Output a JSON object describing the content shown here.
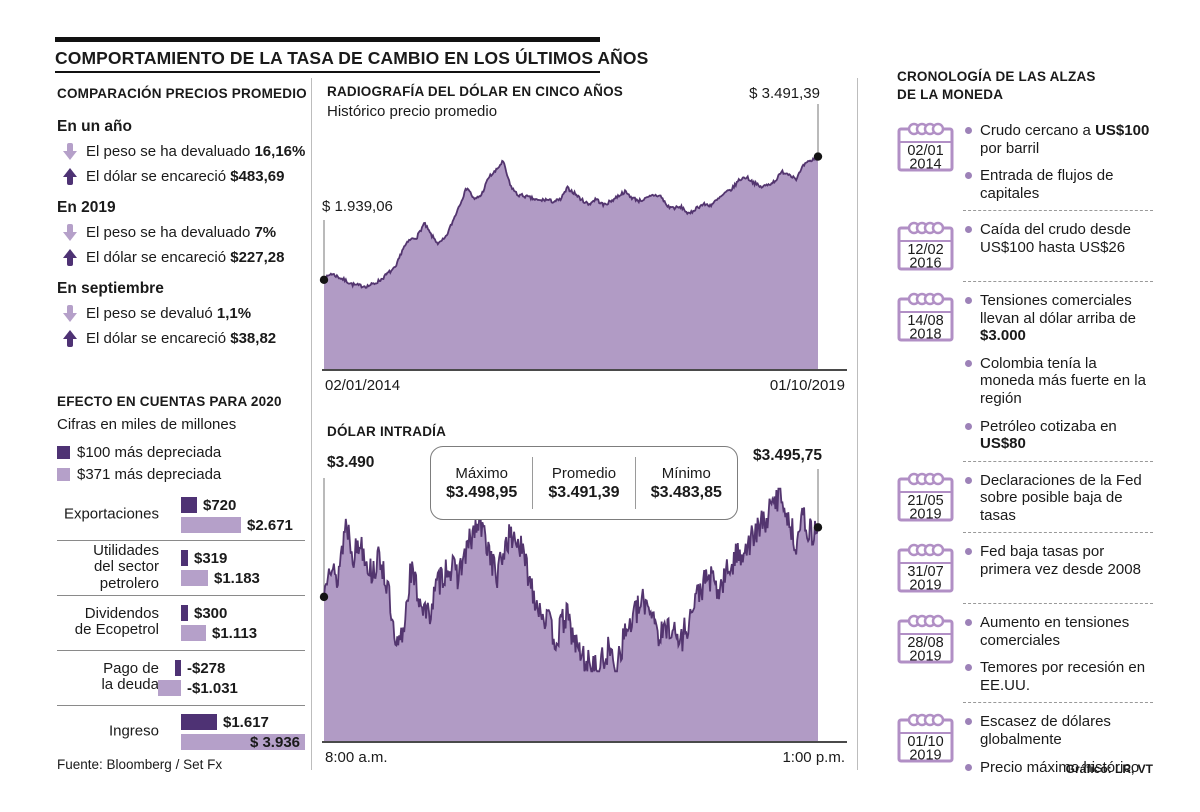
{
  "title": "COMPORTAMIENTO DE LA TASA DE CAMBIO EN LOS ÚLTIMOS AÑOS",
  "colors": {
    "dark_purple": "#4e3274",
    "light_purple": "#b5a0c9",
    "area_fill": "#b19bc5",
    "line_stroke": "#53356f",
    "calendar_purple": "#b18fc5",
    "bullet_purple": "#9d82b8",
    "dot_black": "#141414",
    "axis_gray": "#4a4a4a",
    "callout_gray": "#8c8c8c"
  },
  "left": {
    "heading": "COMPARACIÓN PRECIOS PROMEDIO",
    "sections": [
      {
        "label": "En un año",
        "rows": [
          {
            "dir": "down",
            "text": "El peso se ha devaluado ",
            "bold": "16,16%"
          },
          {
            "dir": "up",
            "text": "El dólar se encareció ",
            "bold": "$483,69"
          }
        ]
      },
      {
        "label": "En 2019",
        "rows": [
          {
            "dir": "down",
            "text": "El peso se ha devaluado ",
            "bold": "7%"
          },
          {
            "dir": "up",
            "text": "El dólar se encareció ",
            "bold": "$227,28"
          }
        ]
      },
      {
        "label": "En septiembre",
        "rows": [
          {
            "dir": "down",
            "text": "El peso se devaluó ",
            "bold": "1,1%"
          },
          {
            "dir": "up",
            "text": "El dólar se encareció ",
            "bold": "$38,82"
          }
        ]
      }
    ],
    "effect_heading": "EFECTO EN CUENTAS PARA 2020",
    "effect_subheading": "Cifras en miles de millones",
    "legend": [
      {
        "swatch": "dark",
        "label": "$100 más depreciada"
      },
      {
        "swatch": "light",
        "label": "$371 más depreciada"
      }
    ],
    "source": "Fuente: Bloomberg / Set Fx"
  },
  "timeline": {
    "heading_line1": "CRONOLOGÍA DE LAS ALZAS",
    "heading_line2": "DE LA MONEDA",
    "entries": [
      {
        "date": [
          "02/01",
          "2014"
        ],
        "bullets": [
          [
            {
              "t": "Crudo cercano a "
            },
            {
              "t": "US$100",
              "b": true
            },
            {
              "t": " por barril"
            }
          ],
          [
            {
              "t": "Entrada de flujos de capitales"
            }
          ]
        ]
      },
      {
        "date": [
          "12/02",
          "2016"
        ],
        "bullets": [
          [
            {
              "t": "Caída del crudo desde US$100 hasta US$26"
            }
          ]
        ]
      },
      {
        "date": [
          "14/08",
          "2018"
        ],
        "bullets": [
          [
            {
              "t": "Tensiones comerciales llevan al dólar arriba de "
            },
            {
              "t": "$3.000",
              "b": true
            }
          ],
          [
            {
              "t": "Colombia tenía la moneda más fuerte en la región"
            }
          ],
          [
            {
              "t": "Petróleo cotizaba en "
            },
            {
              "t": "US$80",
              "b": true
            }
          ]
        ]
      },
      {
        "date": [
          "21/05",
          "2019"
        ],
        "bullets": [
          [
            {
              "t": "Declaraciones de la Fed sobre posible baja de tasas"
            }
          ]
        ]
      },
      {
        "date": [
          "31/07",
          "2019"
        ],
        "bullets": [
          [
            {
              "t": "Fed baja tasas por primera vez desde 2008"
            }
          ]
        ]
      },
      {
        "date": [
          "28/08",
          "2019"
        ],
        "bullets": [
          [
            {
              "t": "Aumento en tensiones comerciales"
            }
          ],
          [
            {
              "t": "Temores por recesión en EE.UU."
            }
          ]
        ]
      },
      {
        "date": [
          "01/10",
          "2019"
        ],
        "bullets": [
          [
            {
              "t": "Escasez de dólares globalmente"
            }
          ],
          [
            {
              "t": "Precio máximo histórico"
            }
          ]
        ]
      }
    ]
  },
  "credit": "Gráfico: LR, VT",
  "chart_data": [
    {
      "id": "efecto-2020",
      "type": "bar",
      "orientation": "horizontal",
      "title": "EFECTO EN CUENTAS PARA 2020",
      "unit": "miles de millones de pesos",
      "categories": [
        "Exportaciones",
        "Utilidades del sector petrolero",
        "Dividendos de Ecopetrol",
        "Pago de la deuda",
        "Ingreso"
      ],
      "category_lines": [
        [
          "Exportaciones"
        ],
        [
          "Utilidades",
          "del sector",
          "petrolero"
        ],
        [
          "Dividendos",
          "de Ecopetrol"
        ],
        [
          "Pago de",
          "la deuda"
        ],
        [
          "Ingreso"
        ]
      ],
      "series": [
        {
          "name": "$100 más depreciada",
          "values": [
            720,
            319,
            300,
            -278,
            1617
          ],
          "labels": [
            "$720",
            "$319",
            "$300",
            "-$278",
            "$1.617"
          ]
        },
        {
          "name": "$371 más depreciada",
          "values": [
            2671,
            1183,
            1113,
            -1031,
            3936
          ],
          "labels": [
            "$2.671",
            "$1.183",
            "$1.113",
            "-$1.031",
            "$ 3.936"
          ]
        }
      ]
    },
    {
      "id": "radiografia-5y",
      "type": "area",
      "title": "RADIOGRAFÍA DEL DÓLAR EN CINCO AÑOS",
      "subtitle": "Histórico precio promedio",
      "x_start_label": "02/01/2014",
      "x_end_label": "01/10/2019",
      "start_label": "$ 1.939,06",
      "end_label": "$ 3.491,39",
      "start_value": 1939.06,
      "end_value": 3491.39,
      "x_unit": "monthly 01/2014 - 10/2019",
      "values": [
        1939.06,
        2020,
        1975,
        1930,
        1880,
        1865,
        1858,
        1890,
        1945,
        2028,
        2090,
        2330,
        2441,
        2480,
        2650,
        2500,
        2390,
        2470,
        2680,
        2900,
        3110,
        2945,
        3010,
        3230,
        3310,
        3434,
        3130,
        3010,
        2995,
        2965,
        2935,
        2950,
        2925,
        2945,
        3095,
        3030,
        2945,
        2890,
        2960,
        2880,
        2925,
        2990,
        3050,
        2975,
        2935,
        2960,
        3006,
        2995,
        2862,
        2845,
        2852,
        2760,
        2845,
        2890,
        2878,
        2950,
        3028,
        3085,
        3200,
        3235,
        3165,
        3105,
        3135,
        3185,
        3300,
        3270,
        3212,
        3380,
        3438,
        3491.39
      ],
      "y_render_domain": [
        816,
        3700
      ]
    },
    {
      "id": "dolar-intradia",
      "type": "area",
      "title": "DÓLAR INTRADÍA",
      "x_start_label": "8:00 a.m.",
      "x_end_label": "1:00 p.m.",
      "start_label": "$3.490",
      "end_label": "$3.495,75",
      "start_value": 3490,
      "end_value": 3495.75,
      "stats": {
        "max_label": "Máximo",
        "max_value": "$3.498,95",
        "avg_label": "Promedio",
        "avg_value": "$3.491,39",
        "min_label": "Mínimo",
        "min_value": "$3.483,85"
      },
      "max": 3498.95,
      "avg": 3491.39,
      "min": 3483.85,
      "anchors": [
        [
          0,
          3490
        ],
        [
          0.01,
          3493.5
        ],
        [
          0.025,
          3491
        ],
        [
          0.045,
          3496.3
        ],
        [
          0.06,
          3493.5
        ],
        [
          0.075,
          3494.6
        ],
        [
          0.095,
          3492
        ],
        [
          0.115,
          3493.2
        ],
        [
          0.13,
          3490.5
        ],
        [
          0.145,
          3485.3
        ],
        [
          0.16,
          3487
        ],
        [
          0.175,
          3492.3
        ],
        [
          0.19,
          3490.3
        ],
        [
          0.21,
          3488.3
        ],
        [
          0.23,
          3491
        ],
        [
          0.25,
          3492.6
        ],
        [
          0.27,
          3491.8
        ],
        [
          0.3,
          3495
        ],
        [
          0.315,
          3496.2
        ],
        [
          0.335,
          3493.8
        ],
        [
          0.35,
          3491.5
        ],
        [
          0.37,
          3494.8
        ],
        [
          0.39,
          3494.9
        ],
        [
          0.41,
          3492.5
        ],
        [
          0.43,
          3489.6
        ],
        [
          0.45,
          3488.2
        ],
        [
          0.47,
          3486.4
        ],
        [
          0.49,
          3488.6
        ],
        [
          0.51,
          3486
        ],
        [
          0.53,
          3484.6
        ],
        [
          0.555,
          3483.9
        ],
        [
          0.575,
          3485.6
        ],
        [
          0.59,
          3484.4
        ],
        [
          0.61,
          3487
        ],
        [
          0.63,
          3488.6
        ],
        [
          0.65,
          3489.7
        ],
        [
          0.665,
          3488.9
        ],
        [
          0.68,
          3486.6
        ],
        [
          0.7,
          3487.8
        ],
        [
          0.72,
          3486.2
        ],
        [
          0.74,
          3488.2
        ],
        [
          0.76,
          3490.6
        ],
        [
          0.78,
          3491.6
        ],
        [
          0.8,
          3490.4
        ],
        [
          0.82,
          3492.4
        ],
        [
          0.84,
          3493.6
        ],
        [
          0.86,
          3494.4
        ],
        [
          0.88,
          3495.6
        ],
        [
          0.9,
          3496.8
        ],
        [
          0.925,
          3498.9
        ],
        [
          0.94,
          3496.2
        ],
        [
          0.955,
          3494.6
        ],
        [
          0.97,
          3496.6
        ],
        [
          0.985,
          3495.2
        ],
        [
          1,
          3495.75
        ]
      ],
      "y_render_domain": [
        3478,
        3499.5
      ]
    }
  ]
}
